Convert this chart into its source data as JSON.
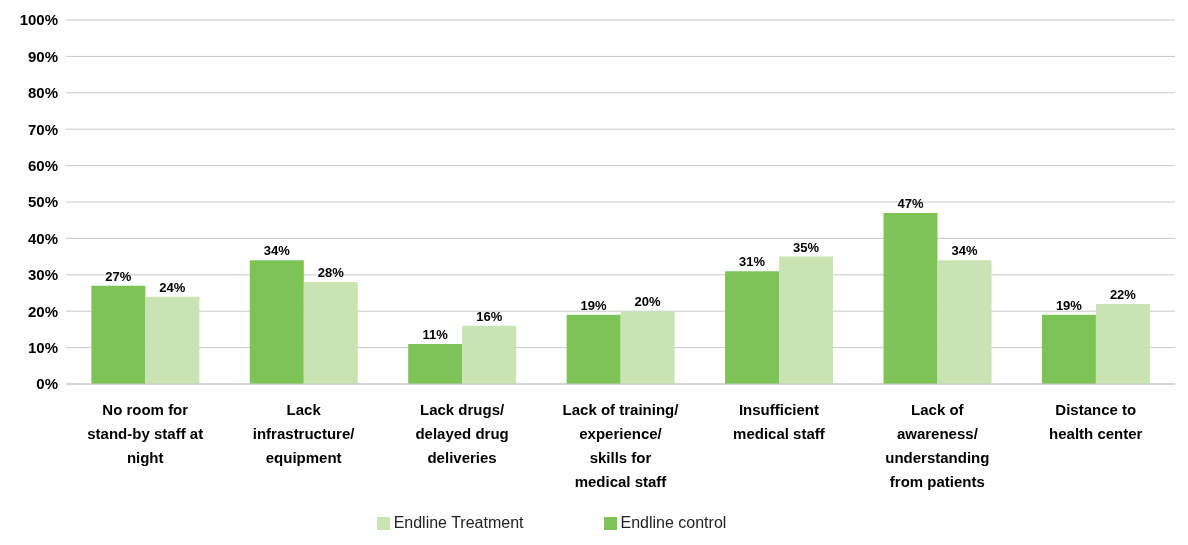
{
  "chart_data": {
    "type": "bar",
    "categories": [
      "No room for stand-by staff at night",
      "Lack infrastructure/ equipment",
      "Lack drugs/ delayed drug deliveries",
      "Lack of training/ experience/ skills for medical staff",
      "Insufficient medical staff",
      "Lack of awareness/ understanding from patients",
      "Distance to health center"
    ],
    "series": [
      {
        "name": "Endline control",
        "color": "#7dc355",
        "values": [
          27,
          34,
          11,
          19,
          31,
          47,
          19
        ],
        "value_labels": [
          "27%",
          "34%",
          "11%",
          "19%",
          "31%",
          "47%",
          "19%"
        ]
      },
      {
        "name": "Endline Treatment",
        "color": "#c9e3b3",
        "values": [
          24,
          28,
          16,
          20,
          35,
          34,
          22
        ],
        "value_labels": [
          "24%",
          "28%",
          "16%",
          "20%",
          "35%",
          "34%",
          "22%"
        ]
      }
    ],
    "ylim": [
      0,
      100
    ],
    "yticks": [
      {
        "value": 0,
        "label": "0%"
      },
      {
        "value": 10,
        "label": "10%"
      },
      {
        "value": 20,
        "label": "20%"
      },
      {
        "value": 30,
        "label": "30%"
      },
      {
        "value": 40,
        "label": "40%"
      },
      {
        "value": 50,
        "label": "50%"
      },
      {
        "value": 60,
        "label": "60%"
      },
      {
        "value": 70,
        "label": "70%"
      },
      {
        "value": 80,
        "label": "80%"
      },
      {
        "value": 90,
        "label": "90%"
      },
      {
        "value": 100,
        "label": "100%"
      }
    ],
    "grid": "y",
    "legend": "bottom"
  }
}
